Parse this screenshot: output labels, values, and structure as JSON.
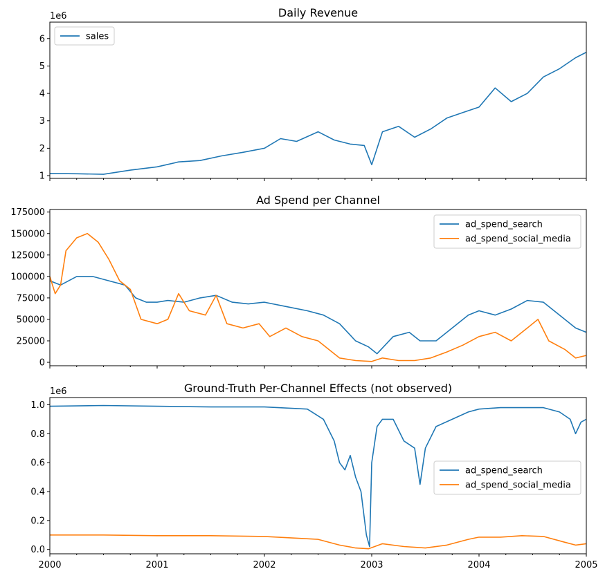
{
  "chart_data": [
    {
      "type": "line",
      "title": "Daily Revenue",
      "xlabel": "",
      "ylabel": "",
      "y_scale_label": "1e6",
      "xlim": [
        2000,
        2005
      ],
      "ylim": [
        0.9,
        6.6
      ],
      "yticks": [
        1,
        2,
        3,
        4,
        5,
        6
      ],
      "xticks": [],
      "legend": {
        "placement": "upper left"
      },
      "series": [
        {
          "name": "sales",
          "color": "#1f77b4",
          "x": [
            2000.0,
            2000.25,
            2000.5,
            2000.75,
            2001.0,
            2001.2,
            2001.4,
            2001.6,
            2001.8,
            2002.0,
            2002.15,
            2002.3,
            2002.5,
            2002.65,
            2002.8,
            2002.93,
            2003.0,
            2003.1,
            2003.25,
            2003.4,
            2003.55,
            2003.7,
            2003.85,
            2004.0,
            2004.15,
            2004.3,
            2004.45,
            2004.6,
            2004.75,
            2004.9,
            2005.0
          ],
          "y": [
            1.08,
            1.07,
            1.05,
            1.2,
            1.32,
            1.5,
            1.55,
            1.72,
            1.85,
            2.0,
            2.35,
            2.25,
            2.6,
            2.3,
            2.15,
            2.1,
            1.4,
            2.6,
            2.8,
            2.4,
            2.7,
            3.1,
            3.3,
            3.5,
            4.2,
            3.7,
            4.0,
            4.6,
            4.9,
            5.3,
            5.5
          ]
        }
      ]
    },
    {
      "type": "line",
      "title": "Ad Spend per Channel",
      "xlabel": "",
      "ylabel": "",
      "xlim": [
        2000,
        2005
      ],
      "ylim": [
        -4000,
        178000
      ],
      "yticks": [
        0,
        25000,
        50000,
        75000,
        100000,
        125000,
        150000,
        175000
      ],
      "xticks": [],
      "legend": {
        "placement": "upper right"
      },
      "series": [
        {
          "name": "ad_spend_search",
          "color": "#1f77b4",
          "x": [
            2000.0,
            2000.1,
            2000.25,
            2000.4,
            2000.55,
            2000.7,
            2000.8,
            2000.9,
            2001.0,
            2001.1,
            2001.25,
            2001.4,
            2001.55,
            2001.7,
            2001.85,
            2002.0,
            2002.2,
            2002.4,
            2002.55,
            2002.7,
            2002.85,
            2002.97,
            2003.05,
            2003.2,
            2003.35,
            2003.45,
            2003.6,
            2003.75,
            2003.9,
            2004.0,
            2004.15,
            2004.3,
            2004.45,
            2004.6,
            2004.75,
            2004.9,
            2005.0
          ],
          "y": [
            95000,
            90000,
            100000,
            100000,
            95000,
            90000,
            75000,
            70000,
            70000,
            72000,
            70000,
            75000,
            78000,
            70000,
            68000,
            70000,
            65000,
            60000,
            55000,
            45000,
            25000,
            18000,
            10000,
            30000,
            35000,
            25000,
            25000,
            40000,
            55000,
            60000,
            55000,
            62000,
            72000,
            70000,
            55000,
            40000,
            35000
          ]
        },
        {
          "name": "ad_spend_social_media",
          "color": "#ff7f0e",
          "x": [
            2000.0,
            2000.05,
            2000.1,
            2000.15,
            2000.25,
            2000.35,
            2000.45,
            2000.55,
            2000.65,
            2000.75,
            2000.85,
            2001.0,
            2001.1,
            2001.2,
            2001.3,
            2001.45,
            2001.55,
            2001.65,
            2001.8,
            2001.95,
            2002.05,
            2002.2,
            2002.35,
            2002.5,
            2002.6,
            2002.7,
            2002.85,
            2003.0,
            2003.1,
            2003.25,
            2003.4,
            2003.55,
            2003.7,
            2003.85,
            2004.0,
            2004.15,
            2004.3,
            2004.45,
            2004.55,
            2004.65,
            2004.8,
            2004.9,
            2005.0
          ],
          "y": [
            100000,
            80000,
            90000,
            130000,
            145000,
            150000,
            140000,
            120000,
            95000,
            85000,
            50000,
            45000,
            50000,
            80000,
            60000,
            55000,
            78000,
            45000,
            40000,
            45000,
            30000,
            40000,
            30000,
            25000,
            15000,
            5000,
            2000,
            1000,
            5000,
            2000,
            2000,
            5000,
            12000,
            20000,
            30000,
            35000,
            25000,
            40000,
            50000,
            25000,
            15000,
            5000,
            8000
          ]
        }
      ]
    },
    {
      "type": "line",
      "title": "Ground-Truth Per-Channel Effects (not observed)",
      "xlabel": "",
      "ylabel": "",
      "y_scale_label": "1e6",
      "xlim": [
        2000,
        2005
      ],
      "ylim": [
        -0.03,
        1.05
      ],
      "yticks": [
        0.0,
        0.2,
        0.4,
        0.6,
        0.8,
        1.0
      ],
      "xticks": [
        "2000",
        "2001",
        "2002",
        "2003",
        "2004",
        "2005"
      ],
      "legend": {
        "placement": "center right"
      },
      "series": [
        {
          "name": "ad_spend_search",
          "color": "#1f77b4",
          "x": [
            2000.0,
            2000.5,
            2001.0,
            2001.5,
            2002.0,
            2002.4,
            2002.55,
            2002.65,
            2002.7,
            2002.75,
            2002.8,
            2002.85,
            2002.9,
            2002.95,
            2002.98,
            2003.0,
            2003.05,
            2003.1,
            2003.2,
            2003.3,
            2003.4,
            2003.45,
            2003.5,
            2003.6,
            2003.75,
            2003.9,
            2004.0,
            2004.2,
            2004.4,
            2004.6,
            2004.75,
            2004.85,
            2004.9,
            2004.95,
            2005.0
          ],
          "y": [
            0.99,
            0.995,
            0.99,
            0.985,
            0.985,
            0.97,
            0.9,
            0.75,
            0.6,
            0.55,
            0.65,
            0.5,
            0.4,
            0.1,
            0.02,
            0.6,
            0.85,
            0.9,
            0.9,
            0.75,
            0.7,
            0.45,
            0.7,
            0.85,
            0.9,
            0.95,
            0.97,
            0.98,
            0.98,
            0.98,
            0.95,
            0.9,
            0.8,
            0.88,
            0.9
          ]
        },
        {
          "name": "ad_spend_social_media",
          "color": "#ff7f0e",
          "x": [
            2000.0,
            2000.5,
            2001.0,
            2001.5,
            2002.0,
            2002.5,
            2002.7,
            2002.85,
            2002.97,
            2003.1,
            2003.3,
            2003.5,
            2003.7,
            2003.9,
            2004.0,
            2004.2,
            2004.4,
            2004.6,
            2004.8,
            2004.9,
            2005.0
          ],
          "y": [
            0.1,
            0.1,
            0.095,
            0.095,
            0.09,
            0.07,
            0.03,
            0.01,
            0.005,
            0.04,
            0.02,
            0.01,
            0.03,
            0.07,
            0.085,
            0.085,
            0.095,
            0.09,
            0.05,
            0.03,
            0.04
          ]
        }
      ]
    }
  ]
}
